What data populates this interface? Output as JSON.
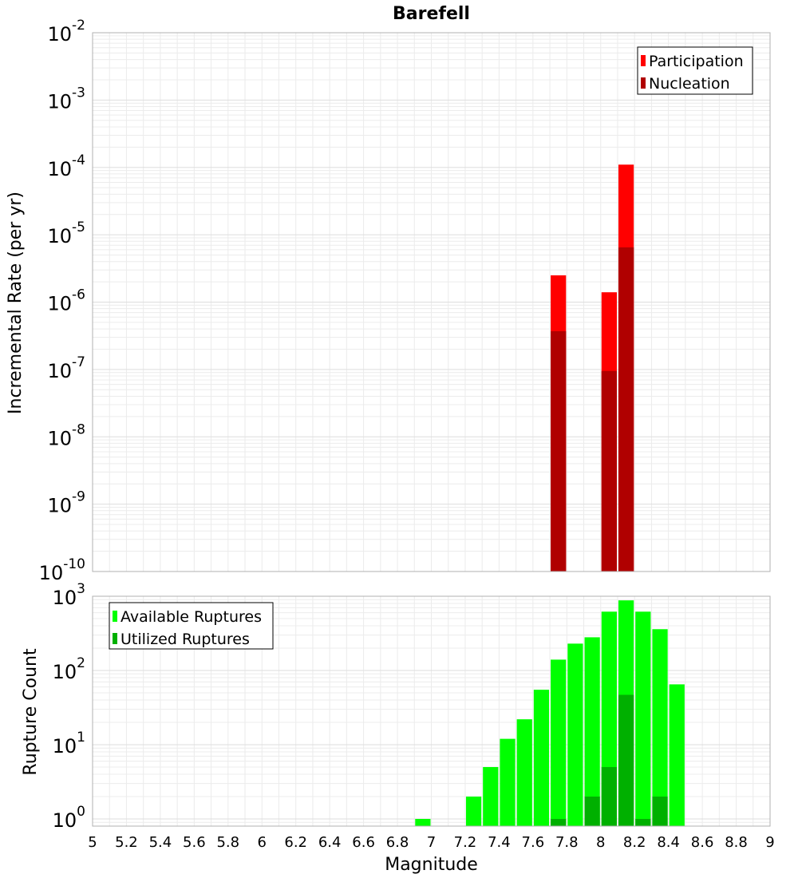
{
  "chart_data": [
    {
      "type": "bar",
      "title": "Barefell",
      "xlabel": "",
      "ylabel": "Incremental Rate (per yr)",
      "xlim": [
        5,
        9
      ],
      "ylim": [
        1e-10,
        0.01
      ],
      "yscale": "log",
      "grid": true,
      "legend_position": "top-right",
      "y_tick_exponents": [
        "-10",
        "-9",
        "-8",
        "-7",
        "-6",
        "-5",
        "-4",
        "-3",
        "-2"
      ],
      "series": [
        {
          "name": "Participation",
          "color": "#ff0000",
          "x": [
            7.75,
            8.05,
            8.15
          ],
          "values": [
            2.5e-06,
            1.4e-06,
            0.00011
          ]
        },
        {
          "name": "Nucleation",
          "color": "#b00000",
          "x": [
            7.75,
            8.05,
            8.15
          ],
          "values": [
            3.7e-07,
            9.5e-08,
            6.5e-06
          ]
        }
      ]
    },
    {
      "type": "bar",
      "title": "",
      "xlabel": "Magnitude",
      "ylabel": "Rupture Count",
      "xlim": [
        5,
        9
      ],
      "ylim": [
        0.8,
        1000
      ],
      "yscale": "log",
      "grid": true,
      "legend_position": "top-left",
      "y_tick_exponents": [
        "0",
        "1",
        "2",
        "3"
      ],
      "x_tick_labels": [
        "5",
        "5.2",
        "5.4",
        "5.6",
        "5.8",
        "6",
        "6.2",
        "6.4",
        "6.6",
        "6.8",
        "7",
        "7.2",
        "7.4",
        "7.6",
        "7.8",
        "8",
        "8.2",
        "8.4",
        "8.6",
        "8.8",
        "9"
      ],
      "series": [
        {
          "name": "Available Ruptures",
          "color": "#00ff00",
          "x": [
            6.95,
            7.25,
            7.35,
            7.45,
            7.55,
            7.65,
            7.75,
            7.85,
            7.95,
            8.05,
            8.15,
            8.25,
            8.35,
            8.45
          ],
          "values": [
            1,
            2,
            5,
            12,
            22,
            55,
            140,
            230,
            280,
            620,
            880,
            620,
            360,
            65
          ]
        },
        {
          "name": "Utilized Ruptures",
          "color": "#00b000",
          "x": [
            7.75,
            7.95,
            8.05,
            8.15,
            8.25,
            8.35
          ],
          "values": [
            1,
            2,
            5,
            47,
            1,
            2
          ]
        }
      ]
    }
  ]
}
